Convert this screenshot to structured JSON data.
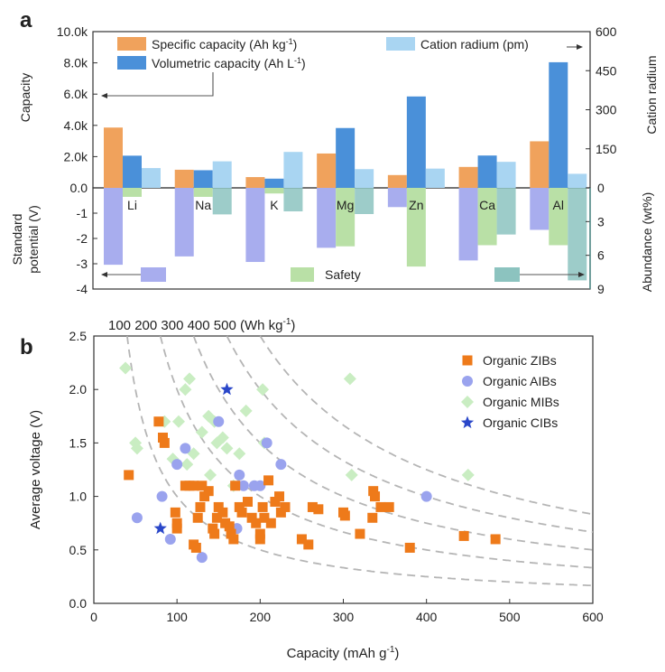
{
  "colors": {
    "specific": "#F0A25C",
    "volumetric": "#4A90D9",
    "radius": "#A9D5F2",
    "potential": "#A8ADEE",
    "safety": "#B9E0A6",
    "abundance": "#8CC3BF",
    "zib": "#EE7A1A",
    "aib": "#9AA3EE",
    "mib": "#C9EDC2",
    "cib": "#2A47C9",
    "curve": "#B5B5B5"
  },
  "panel_a": {
    "label": "a",
    "left_axis_title": "Capacity",
    "right_axis_title": "Cation radium",
    "bottom_left_title_line1": "Standard",
    "bottom_left_title_line2": "potential (V)",
    "bottom_right_title": "Abundance (wt%)",
    "legend_specific": "Specific capacity (Ah kg",
    "legend_specific_sup": "-1",
    "legend_specific_end": ")",
    "legend_volumetric": "Volumetric capacity (Ah L",
    "legend_volumetric_sup": "-1",
    "legend_volumetric_end": ")",
    "legend_radius": "Cation radium (pm)",
    "legend_safety": "Safety"
  },
  "panel_b": {
    "label": "b",
    "energy_header": "100 200 300 400 500 (Wh kg",
    "energy_header_sup": "-1",
    "energy_header_end": ")",
    "legend": [
      "Organic ZIBs",
      "Organic AIBs",
      "Organic MIBs",
      "Organic CIBs"
    ]
  },
  "chart_data": [
    {
      "type": "bar",
      "title": "",
      "categories": [
        "Li",
        "Na",
        "K",
        "Mg",
        "Zn",
        "Ca",
        "Al"
      ],
      "series": [
        {
          "name": "Specific capacity (Ah kg-1)",
          "axis": "left",
          "values": [
            3860,
            1160,
            690,
            2200,
            820,
            1340,
            2980
          ]
        },
        {
          "name": "Volumetric capacity (Ah L-1)",
          "axis": "left",
          "values": [
            2060,
            1130,
            590,
            3830,
            5850,
            2070,
            8040
          ]
        },
        {
          "name": "Cation radium (pm)",
          "axis": "right",
          "values": [
            76,
            102,
            138,
            72,
            74,
            100,
            54
          ]
        }
      ],
      "ylabel": "Capacity",
      "ylim": [
        0,
        10000
      ],
      "yticks": [
        "0.0",
        "2.0k",
        "4.0k",
        "6.0k",
        "8.0k",
        "10.0k"
      ],
      "ylabel_right": "Cation radium",
      "ylim_right": [
        0,
        600
      ],
      "yticks_right": [
        "0",
        "150",
        "300",
        "450",
        "600"
      ]
    },
    {
      "type": "bar",
      "title": "",
      "categories": [
        "Li",
        "Na",
        "K",
        "Mg",
        "Zn",
        "Ca",
        "Al"
      ],
      "series": [
        {
          "name": "Standard potential (V)",
          "axis": "left",
          "values": [
            -3.04,
            -2.71,
            -2.93,
            -2.37,
            -0.76,
            -2.87,
            -1.66
          ]
        },
        {
          "name": "Safety",
          "axis": "right",
          "values": [
            0.8,
            0.8,
            0.5,
            5.2,
            7.0,
            5.1,
            5.1
          ]
        },
        {
          "name": "Abundance (wt%)",
          "axis": "right",
          "values": [
            0.0,
            2.36,
            2.09,
            2.33,
            0.0,
            4.15,
            8.23
          ]
        }
      ],
      "ylabel": "Standard potential (V)",
      "ylim": [
        -4,
        0
      ],
      "yticks": [
        "0.0",
        "-1",
        "-2",
        "-3",
        "-4"
      ],
      "ylabel_right": "Abundance (wt%)",
      "ylim_right": [
        0,
        9
      ],
      "yticks_right": [
        "0",
        "3",
        "6",
        "9"
      ]
    },
    {
      "type": "scatter",
      "title": "",
      "xlabel": "Capacity (mAh g",
      "xlabel_sup": "-1",
      "xlabel_end": ")",
      "ylabel": "Average voltage (V)",
      "xlim": [
        0,
        600
      ],
      "ylim": [
        0,
        2.5
      ],
      "xticks": [
        "0",
        "100",
        "200",
        "300",
        "400",
        "500",
        "600"
      ],
      "yticks": [
        "0.0",
        "0.5",
        "1.0",
        "1.5",
        "2.0",
        "2.5"
      ],
      "energy_curves_wh_kg": [
        100,
        200,
        300,
        400,
        500
      ],
      "series": [
        {
          "name": "Organic ZIBs",
          "marker": "square",
          "points": [
            [
              42,
              1.2
            ],
            [
              78,
              1.7
            ],
            [
              83,
              1.55
            ],
            [
              85,
              1.5
            ],
            [
              98,
              0.85
            ],
            [
              100,
              0.75
            ],
            [
              100,
              0.7
            ],
            [
              110,
              1.1
            ],
            [
              115,
              1.1
            ],
            [
              120,
              1.1
            ],
            [
              120,
              0.55
            ],
            [
              123,
              0.52
            ],
            [
              125,
              0.8
            ],
            [
              128,
              0.9
            ],
            [
              130,
              1.1
            ],
            [
              133,
              1.0
            ],
            [
              138,
              1.05
            ],
            [
              143,
              0.7
            ],
            [
              145,
              0.65
            ],
            [
              148,
              0.8
            ],
            [
              150,
              0.9
            ],
            [
              155,
              0.85
            ],
            [
              158,
              0.75
            ],
            [
              163,
              0.72
            ],
            [
              165,
              0.65
            ],
            [
              168,
              0.6
            ],
            [
              170,
              1.1
            ],
            [
              175,
              0.9
            ],
            [
              178,
              0.85
            ],
            [
              185,
              0.95
            ],
            [
              190,
              0.8
            ],
            [
              195,
              0.75
            ],
            [
              200,
              0.6
            ],
            [
              200,
              0.65
            ],
            [
              203,
              0.9
            ],
            [
              205,
              0.8
            ],
            [
              210,
              1.15
            ],
            [
              213,
              0.75
            ],
            [
              218,
              0.95
            ],
            [
              223,
              1.0
            ],
            [
              225,
              0.85
            ],
            [
              230,
              0.9
            ],
            [
              250,
              0.6
            ],
            [
              258,
              0.55
            ],
            [
              263,
              0.9
            ],
            [
              270,
              0.88
            ],
            [
              300,
              0.85
            ],
            [
              302,
              0.82
            ],
            [
              320,
              0.65
            ],
            [
              335,
              0.8
            ],
            [
              336,
              1.05
            ],
            [
              338,
              1.0
            ],
            [
              345,
              0.9
            ],
            [
              355,
              0.9
            ],
            [
              380,
              0.52
            ],
            [
              445,
              0.63
            ],
            [
              483,
              0.6
            ]
          ]
        },
        {
          "name": "Organic AIBs",
          "marker": "circle",
          "points": [
            [
              52,
              0.8
            ],
            [
              82,
              1.0
            ],
            [
              92,
              0.6
            ],
            [
              100,
              1.3
            ],
            [
              110,
              1.45
            ],
            [
              130,
              0.43
            ],
            [
              150,
              1.7
            ],
            [
              172,
              0.7
            ],
            [
              175,
              1.2
            ],
            [
              180,
              1.1
            ],
            [
              193,
              1.1
            ],
            [
              200,
              1.1
            ],
            [
              208,
              1.5
            ],
            [
              225,
              1.3
            ],
            [
              400,
              1.0
            ]
          ]
        },
        {
          "name": "Organic MIBs",
          "marker": "diamond",
          "points": [
            [
              38,
              2.2
            ],
            [
              50,
              1.5
            ],
            [
              52,
              1.45
            ],
            [
              85,
              1.7
            ],
            [
              95,
              1.35
            ],
            [
              102,
              1.7
            ],
            [
              110,
              2.0
            ],
            [
              112,
              1.3
            ],
            [
              115,
              2.1
            ],
            [
              120,
              1.4
            ],
            [
              130,
              1.6
            ],
            [
              138,
              1.75
            ],
            [
              140,
              1.2
            ],
            [
              145,
              1.7
            ],
            [
              148,
              1.5
            ],
            [
              155,
              1.55
            ],
            [
              160,
              1.45
            ],
            [
              168,
              1.1
            ],
            [
              175,
              1.4
            ],
            [
              183,
              1.8
            ],
            [
              203,
              2.0
            ],
            [
              205,
              1.5
            ],
            [
              308,
              2.1
            ],
            [
              310,
              1.2
            ],
            [
              450,
              1.2
            ]
          ]
        },
        {
          "name": "Organic CIBs",
          "marker": "star",
          "points": [
            [
              80,
              0.7
            ],
            [
              160,
              2.0
            ]
          ]
        }
      ]
    }
  ]
}
